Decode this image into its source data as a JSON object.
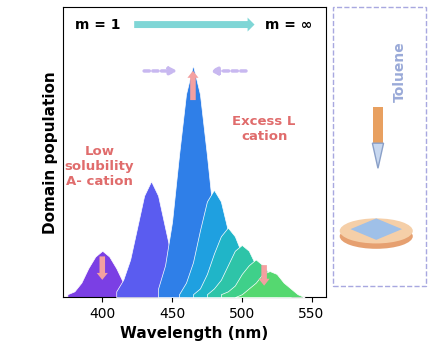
{
  "chart_data": {
    "type": "area",
    "x_label": "Wavelength (nm)",
    "y_label": "Domain population",
    "xlim": [
      372,
      560
    ],
    "xticks": [
      400,
      450,
      500,
      550
    ],
    "ylim": [
      0,
      1.0
    ],
    "yticks": [],
    "tick_labels": "x",
    "annotations": {
      "m_start": "m = 1",
      "m_end": "m = ∞",
      "left_note": "Low\nsolubility\nA- cation",
      "right_note": "Excess L\ncation",
      "solvent": "Toluene"
    },
    "series": [
      {
        "color": "#7b3fe4",
        "x": [
          375,
          380,
          385,
          390,
          395,
          400,
          405,
          410,
          415,
          420,
          425
        ],
        "values": [
          0.01,
          0.02,
          0.05,
          0.1,
          0.14,
          0.16,
          0.14,
          0.1,
          0.05,
          0.02,
          0.01
        ]
      },
      {
        "color": "#5a5cf0",
        "x": [
          410,
          415,
          420,
          425,
          430,
          435,
          440,
          445,
          450,
          455,
          460
        ],
        "values": [
          0.02,
          0.06,
          0.13,
          0.24,
          0.35,
          0.4,
          0.35,
          0.24,
          0.13,
          0.06,
          0.02
        ]
      },
      {
        "color": "#2f7fe8",
        "x": [
          440,
          445,
          450,
          455,
          460,
          465,
          470,
          475,
          480,
          485,
          490
        ],
        "values": [
          0.03,
          0.11,
          0.26,
          0.49,
          0.7,
          0.8,
          0.7,
          0.49,
          0.26,
          0.11,
          0.03
        ]
      },
      {
        "color": "#1fa0e0",
        "x": [
          455,
          460,
          465,
          470,
          475,
          480,
          485,
          490,
          495,
          500,
          505
        ],
        "values": [
          0.01,
          0.05,
          0.12,
          0.23,
          0.33,
          0.37,
          0.33,
          0.23,
          0.12,
          0.05,
          0.01
        ]
      },
      {
        "color": "#20b5c8",
        "x": [
          465,
          470,
          475,
          480,
          485,
          490,
          495,
          500,
          505,
          510,
          515
        ],
        "values": [
          0.01,
          0.03,
          0.08,
          0.15,
          0.21,
          0.24,
          0.21,
          0.15,
          0.08,
          0.03,
          0.01
        ]
      },
      {
        "color": "#2ec4a8",
        "x": [
          475,
          480,
          485,
          490,
          495,
          500,
          505,
          510,
          515,
          520,
          525
        ],
        "values": [
          0.01,
          0.03,
          0.06,
          0.11,
          0.16,
          0.18,
          0.16,
          0.11,
          0.06,
          0.03,
          0.01
        ]
      },
      {
        "color": "#3fd08a",
        "x": [
          485,
          490,
          495,
          500,
          505,
          510,
          515,
          520,
          525,
          530,
          535
        ],
        "values": [
          0.01,
          0.02,
          0.04,
          0.08,
          0.11,
          0.13,
          0.11,
          0.08,
          0.04,
          0.02,
          0.01
        ]
      },
      {
        "color": "#55d870",
        "x": [
          495,
          500,
          505,
          510,
          515,
          520,
          525,
          530,
          535,
          540,
          545
        ],
        "values": [
          0.0,
          0.01,
          0.03,
          0.05,
          0.08,
          0.09,
          0.08,
          0.05,
          0.03,
          0.01,
          0.0
        ]
      }
    ]
  }
}
